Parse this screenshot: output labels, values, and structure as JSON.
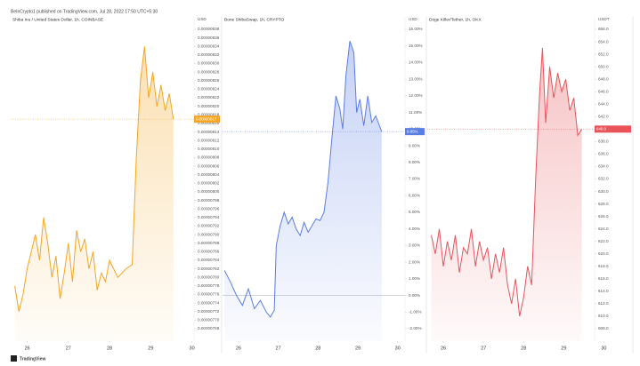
{
  "header": "BeInCrypto1 published on TradingView.com, Jul 28, 2022 17:50 UTC+5:30",
  "footer": "TradingView",
  "chart_data": [
    {
      "type": "line",
      "title": "Shiba Inu / United States Dollar, 1h, COINBASE",
      "unit": "USD",
      "color": "#f5a623",
      "x": [
        25.7,
        25.8,
        25.9,
        26.0,
        26.1,
        26.2,
        26.3,
        26.4,
        26.5,
        26.6,
        26.7,
        26.8,
        26.9,
        27.0,
        27.1,
        27.2,
        27.3,
        27.4,
        27.5,
        27.6,
        27.7,
        27.8,
        27.9,
        28.0,
        28.2,
        28.4,
        28.55,
        28.65,
        28.75,
        28.85,
        28.95,
        29.05,
        29.15,
        29.25,
        29.35,
        29.45,
        29.55
      ],
      "values": [
        7.78e-06,
        7.72e-06,
        7.76e-06,
        7.82e-06,
        7.86e-06,
        7.9e-06,
        7.84e-06,
        7.94e-06,
        7.88e-06,
        7.8e-06,
        7.85e-06,
        7.75e-06,
        7.81e-06,
        7.88e-06,
        7.79e-06,
        7.91e-06,
        7.86e-06,
        7.89e-06,
        7.82e-06,
        7.86e-06,
        7.77e-06,
        7.81e-06,
        7.79e-06,
        7.84e-06,
        7.8e-06,
        7.82e-06,
        7.83e-06,
        8.08e-06,
        8.26e-06,
        8.34e-06,
        8.22e-06,
        8.28e-06,
        8.2e-06,
        8.25e-06,
        8.19e-06,
        8.23e-06,
        8.17e-06
      ],
      "last_value_label": "0.00000817",
      "xlim": [
        25.6,
        30.7
      ],
      "xticks": [
        26,
        27,
        28,
        29,
        30
      ],
      "ylim": [
        7.68e-06,
        8.38e-06
      ],
      "yticks": [
        8.38e-06,
        8.36e-06,
        8.34e-06,
        8.32e-06,
        {
          "value": 8.3e-06,
          "label": "0.00000830"
        },
        8.28e-06,
        8.26e-06,
        8.24e-06,
        8.22e-06,
        {
          "value": 8.2e-06,
          "label": "0.00000820"
        },
        8.18e-06,
        8.16e-06,
        8.14e-06,
        8.12e-06,
        {
          "value": 8.1e-06,
          "label": "0.00000810"
        },
        8.08e-06,
        8.06e-06,
        8.04e-06,
        8.02e-06,
        {
          "value": 8e-06,
          "label": "0.00000800"
        },
        7.98e-06,
        7.96e-06,
        7.94e-06,
        7.92e-06,
        {
          "value": 7.9e-06,
          "label": "0.00000790"
        },
        7.88e-06,
        7.86e-06,
        7.84e-06,
        7.82e-06,
        {
          "value": 7.8e-06,
          "label": "0.00000780"
        },
        7.78e-06,
        7.76e-06,
        7.74e-06,
        7.72e-06,
        {
          "value": 7.7e-06,
          "label": "0.00000770"
        },
        7.68e-06
      ]
    },
    {
      "type": "line",
      "title": "Bone ShibaSwap, 1h, CRYPTO",
      "unit": "USD",
      "color": "#5b7ee5",
      "baseline": 0,
      "x": [
        25.65,
        25.8,
        25.95,
        26.1,
        26.25,
        26.4,
        26.55,
        26.7,
        26.8,
        26.9,
        26.95,
        27.05,
        27.15,
        27.25,
        27.35,
        27.45,
        27.55,
        27.65,
        27.75,
        27.85,
        27.95,
        28.05,
        28.15,
        28.25,
        28.35,
        28.45,
        28.55,
        28.62,
        28.7,
        28.8,
        28.9,
        28.97,
        29.05,
        29.15,
        29.25,
        29.35,
        29.45,
        29.6
      ],
      "values": [
        1.5,
        0.8,
        0.0,
        -0.6,
        0.4,
        -0.8,
        -0.3,
        -1.0,
        -1.3,
        -0.9,
        3.0,
        4.2,
        5.0,
        4.3,
        4.7,
        4.0,
        3.6,
        4.4,
        3.8,
        4.2,
        4.6,
        4.5,
        5.0,
        6.8,
        9.5,
        12.0,
        11.2,
        10.0,
        13.2,
        15.3,
        14.6,
        11.0,
        11.8,
        10.2,
        12.0,
        10.4,
        10.8,
        9.85
      ],
      "last_value_label": "9.85%",
      "xlim": [
        25.6,
        30.7
      ],
      "xticks": [
        26,
        27,
        28,
        29,
        30
      ],
      "ylim": [
        -2,
        16
      ],
      "yticks": [
        {
          "value": 16,
          "label": "16.00%"
        },
        {
          "value": 15,
          "label": "15.00%"
        },
        {
          "value": 14,
          "label": "14.00%"
        },
        {
          "value": 13,
          "label": "13.00%"
        },
        {
          "value": 12,
          "label": "12.00%"
        },
        {
          "value": 11,
          "label": "11.00%"
        },
        {
          "value": 10,
          "label": "10.00%"
        },
        {
          "value": 9,
          "label": "9.00%"
        },
        {
          "value": 8,
          "label": "8.00%"
        },
        {
          "value": 7,
          "label": "7.00%"
        },
        {
          "value": 6,
          "label": "6.00%"
        },
        {
          "value": 5,
          "label": "5.00%"
        },
        {
          "value": 4,
          "label": "4.00%"
        },
        {
          "value": 3,
          "label": "3.00%"
        },
        {
          "value": 2,
          "label": "2.00%"
        },
        {
          "value": 1,
          "label": "1.00%"
        },
        {
          "value": 0,
          "label": "0.00%"
        },
        {
          "value": -1,
          "label": "-1.00%"
        },
        {
          "value": -2,
          "label": "-2.00%"
        }
      ]
    },
    {
      "type": "line",
      "title": "Doge Killer/Tether, 1h, OKX",
      "unit": "USDT",
      "color": "#e8545a",
      "x": [
        25.7,
        25.8,
        25.9,
        26.0,
        26.1,
        26.2,
        26.3,
        26.4,
        26.5,
        26.6,
        26.7,
        26.8,
        26.9,
        27.0,
        27.1,
        27.2,
        27.3,
        27.4,
        27.5,
        27.6,
        27.7,
        27.8,
        27.9,
        28.0,
        28.1,
        28.2,
        28.3,
        28.4,
        28.47,
        28.55,
        28.65,
        28.75,
        28.85,
        28.95,
        29.05,
        29.15,
        29.25,
        29.35,
        29.45
      ],
      "values": [
        623,
        620,
        624,
        618,
        622,
        619,
        623,
        617,
        621,
        620,
        624,
        618,
        622,
        619,
        621,
        616,
        620,
        617,
        621,
        615,
        612,
        616,
        610,
        613,
        618,
        615,
        632,
        646,
        653,
        641,
        650,
        645,
        649,
        646,
        648,
        643,
        645,
        639,
        640
      ],
      "last_value_label": "640.0",
      "xlim": [
        25.6,
        30.7
      ],
      "xticks": [
        26,
        27,
        28,
        29,
        30
      ],
      "ylim": [
        608,
        656
      ],
      "yticks": [
        {
          "value": 656,
          "label": "656.0"
        },
        {
          "value": 654,
          "label": "654.0"
        },
        {
          "value": 652,
          "label": "652.0"
        },
        {
          "value": 650,
          "label": "650.0"
        },
        {
          "value": 648,
          "label": "648.0"
        },
        {
          "value": 646,
          "label": "646.0"
        },
        {
          "value": 644,
          "label": "644.0"
        },
        {
          "value": 642,
          "label": "642.0"
        },
        {
          "value": 640,
          "label": "640.0"
        },
        {
          "value": 638,
          "label": "638.0"
        },
        {
          "value": 636,
          "label": "636.0"
        },
        {
          "value": 634,
          "label": "634.0"
        },
        {
          "value": 632,
          "label": "632.0"
        },
        {
          "value": 630,
          "label": "630.0"
        },
        {
          "value": 628,
          "label": "628.0"
        },
        {
          "value": 626,
          "label": "626.0"
        },
        {
          "value": 624,
          "label": "624.0"
        },
        {
          "value": 622,
          "label": "622.0"
        },
        {
          "value": 620,
          "label": "620.0"
        },
        {
          "value": 618,
          "label": "618.0"
        },
        {
          "value": 616,
          "label": "616.0"
        },
        {
          "value": 614,
          "label": "614.0"
        },
        {
          "value": 612,
          "label": "612.0"
        },
        {
          "value": 610,
          "label": "610.0"
        },
        {
          "value": 608,
          "label": "608.0"
        }
      ]
    }
  ]
}
